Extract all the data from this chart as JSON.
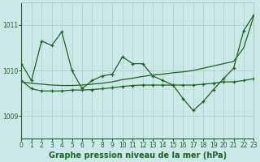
{
  "bg_color": "#cce8e8",
  "grid_color": "#aacccc",
  "line_color": "#1a6620",
  "title": "Graphe pression niveau de la mer (hPa)",
  "xlim": [
    0,
    23
  ],
  "ylim": [
    1008.5,
    1011.5
  ],
  "yticks": [
    1009,
    1010,
    1011
  ],
  "xticks": [
    0,
    1,
    2,
    3,
    4,
    5,
    6,
    7,
    8,
    9,
    10,
    11,
    12,
    13,
    14,
    15,
    16,
    17,
    18,
    19,
    20,
    21,
    22,
    23
  ],
  "line1_y": [
    1009.75,
    1009.72,
    1009.7,
    1009.68,
    1009.67,
    1009.67,
    1009.68,
    1009.7,
    1009.72,
    1009.75,
    1009.8,
    1009.83,
    1009.87,
    1009.9,
    1009.92,
    1009.95,
    1009.97,
    1010.0,
    1010.05,
    1010.1,
    1010.15,
    1010.2,
    1010.5,
    1011.2
  ],
  "line2_y": [
    1010.15,
    1009.78,
    1010.65,
    1010.55,
    1010.85,
    1010.0,
    1009.6,
    1009.78,
    1009.88,
    1009.92,
    1010.3,
    1010.15,
    1010.15,
    1009.88,
    1009.78,
    1009.68,
    1009.38,
    1009.12,
    1009.32,
    1009.58,
    1009.82,
    1010.05,
    1010.88,
    1011.22
  ],
  "line3_y": [
    1009.78,
    1009.6,
    1009.55,
    1009.55,
    1009.55,
    1009.57,
    1009.57,
    1009.58,
    1009.6,
    1009.62,
    1009.65,
    1009.67,
    1009.68,
    1009.68,
    1009.68,
    1009.68,
    1009.68,
    1009.68,
    1009.7,
    1009.72,
    1009.75,
    1009.75,
    1009.78,
    1009.82
  ],
  "title_fontsize": 7,
  "tick_fontsize": 5.5
}
